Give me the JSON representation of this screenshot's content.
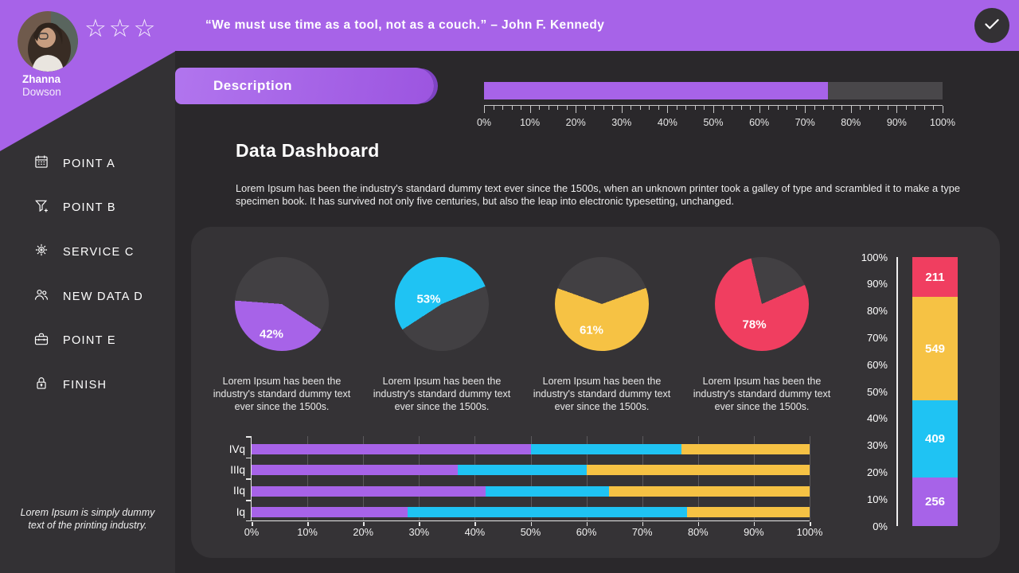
{
  "colors": {
    "accent_purple": "#a763e8",
    "cyan": "#1fc3f3",
    "yellow": "#f6c244",
    "red": "#f03e60",
    "pie_rest": "#424043"
  },
  "header": {
    "quote": "“We must use time as a tool, not as a couch.” – John F. Kennedy"
  },
  "profile": {
    "first_name": "Zhanna",
    "last_name": "Dowson",
    "star_glyph": "☆",
    "rating_stars": 3
  },
  "sidebar": {
    "items": [
      {
        "icon": "calendar-icon",
        "label": "POINT A"
      },
      {
        "icon": "filter-icon",
        "label": "POINT B"
      },
      {
        "icon": "gear-icon",
        "label": "SERVICE C"
      },
      {
        "icon": "users-icon",
        "label": "NEW DATA D"
      },
      {
        "icon": "briefcase-icon",
        "label": "POINT E"
      },
      {
        "icon": "lock-icon",
        "label": "FINISH"
      }
    ],
    "footer_note": "Lorem Ipsum is simply dummy text of the printing industry."
  },
  "description": {
    "label": "Description"
  },
  "progress": {
    "percent": 75,
    "tick_labels": [
      "0%",
      "10%",
      "20%",
      "30%",
      "40%",
      "50%",
      "60%",
      "70%",
      "80%",
      "90%",
      "100%"
    ]
  },
  "main": {
    "title": "Data Dashboard",
    "intro": "Lorem Ipsum has been the industry's standard dummy text ever since the 1500s, when an unknown printer took a galley of type and scrambled it to make a type specimen book. It has survived not only five centuries, but also the leap into electronic typesetting, unchanged."
  },
  "chart_data": [
    {
      "type": "pie",
      "percent": 42,
      "label": "42%",
      "color": "#a763e8",
      "start_deg": 123,
      "label_pos": {
        "x": "39%",
        "y": "82%"
      },
      "caption": "Lorem Ipsum has been the industry's standard dummy text ever since the 1500s."
    },
    {
      "type": "pie",
      "percent": 53,
      "label": "53%",
      "color": "#1fc3f3",
      "start_deg": 237,
      "label_pos": {
        "x": "36%",
        "y": "45%"
      },
      "caption": "Lorem Ipsum has been the industry's standard dummy text ever since the 1500s."
    },
    {
      "type": "pie",
      "percent": 61,
      "label": "61%",
      "color": "#f6c244",
      "start_deg": 70,
      "label_pos": {
        "x": "39%",
        "y": "78%"
      },
      "caption": "Lorem Ipsum has been the industry's standard dummy text ever since the 1500s."
    },
    {
      "type": "pie",
      "percent": 78,
      "label": "78%",
      "color": "#f03e60",
      "start_deg": 66,
      "label_pos": {
        "x": "42%",
        "y": "72%"
      },
      "caption": "Lorem Ipsum has been the industry's standard dummy text ever since the 1500s."
    },
    {
      "type": "bar",
      "orientation": "horizontal",
      "stacked": true,
      "categories": [
        "IVq",
        "IIIq",
        "IIq",
        "Iq"
      ],
      "series": [
        {
          "name": "segment-purple",
          "color": "#a763e8",
          "values": [
            50,
            37,
            42,
            28
          ]
        },
        {
          "name": "segment-cyan",
          "color": "#1fc3f3",
          "values": [
            27,
            23,
            22,
            50
          ]
        },
        {
          "name": "segment-yellow",
          "color": "#f6c244",
          "values": [
            23,
            40,
            36,
            22
          ]
        }
      ],
      "x_ticks": [
        "0%",
        "10%",
        "20%",
        "30%",
        "40%",
        "50%",
        "60%",
        "70%",
        "80%",
        "90%",
        "100%"
      ],
      "xlim": [
        0,
        100
      ],
      "grid": true
    },
    {
      "type": "bar",
      "orientation": "vertical",
      "stacked": true,
      "total": 1425,
      "segments": [
        {
          "value": 211,
          "color": "#f03e60"
        },
        {
          "value": 549,
          "color": "#f6c244"
        },
        {
          "value": 409,
          "color": "#1fc3f3"
        },
        {
          "value": 256,
          "color": "#a763e8"
        }
      ],
      "y_ticks": [
        "100%",
        "90%",
        "80%",
        "70%",
        "60%",
        "50%",
        "40%",
        "30%",
        "20%",
        "10%",
        "0%"
      ],
      "ylim": [
        0,
        100
      ]
    }
  ]
}
